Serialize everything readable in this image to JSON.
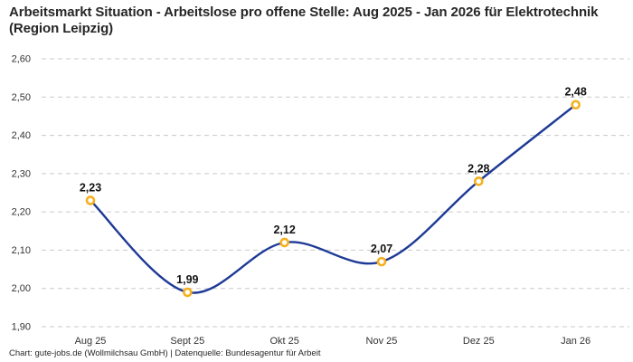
{
  "header": {
    "title": "Arbeitsmarkt Situation - Arbeitslose pro offene Stelle: Aug 2025 - Jan 2026 für Elektrotechnik (Region Leipzig)"
  },
  "footer": {
    "text": "Chart: gute-jobs.de (Wollmilchsau GmbH) | Datenquelle: Bundesagentur für Arbeit"
  },
  "chart_data": {
    "type": "line",
    "title": "Arbeitsmarkt Situation - Arbeitslose pro offene Stelle: Aug 2025 - Jan 2026 für Elektrotechnik (Region Leipzig)",
    "categories": [
      "Aug 25",
      "Sept 25",
      "Okt 25",
      "Nov 25",
      "Dez 25",
      "Jan 26"
    ],
    "values": [
      2.23,
      1.99,
      2.12,
      2.07,
      2.28,
      2.48
    ],
    "value_labels": [
      "2,23",
      "1,99",
      "2,12",
      "2,07",
      "2,28",
      "2,48"
    ],
    "xlabel": "",
    "ylabel": "",
    "ylim": [
      1.9,
      2.6
    ],
    "ytick_step": 0.1,
    "ytick_labels": [
      "1,90",
      "2,00",
      "2,10",
      "2,20",
      "2,30",
      "2,40",
      "2,50",
      "2,60"
    ],
    "grid": "horizontal-dashed",
    "legend": "none",
    "line_style": "smooth-spline",
    "colors": {
      "line": "#1e3a96",
      "marker_stroke": "#f6b01e",
      "marker_fill": "#ffffff",
      "gridline": "#c9c9c9",
      "tick_label": "#333333",
      "point_label": "#111111",
      "background": "#ffffff"
    }
  }
}
